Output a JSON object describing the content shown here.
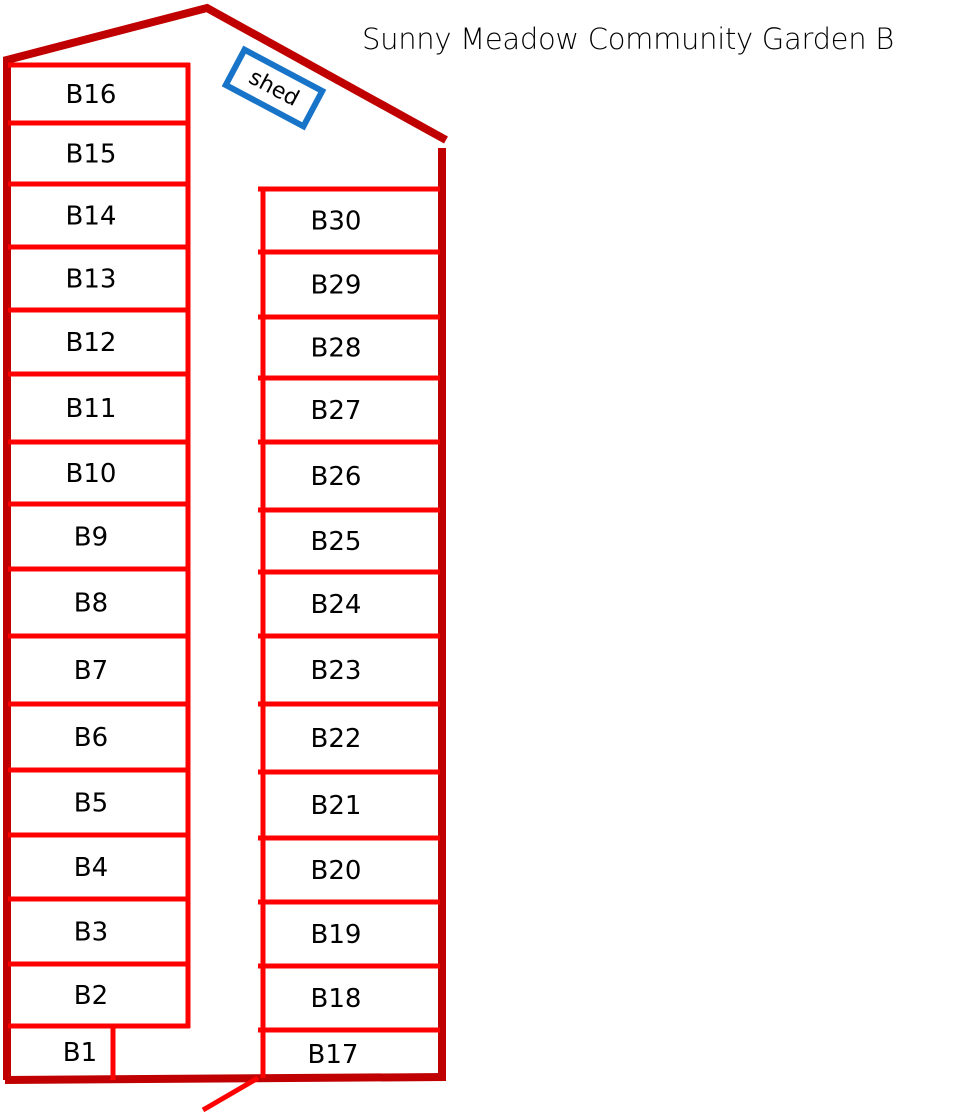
{
  "title": "Sunny Meadow Community Garden B",
  "shed_label": "shed",
  "colors": {
    "boundary": "#c00000",
    "plot_lines": "#ff0000",
    "shed": "#1874c8"
  },
  "left_column_plots": [
    "B16",
    "B15",
    "B14",
    "B13",
    "B12",
    "B11",
    "B10",
    "B9",
    "B8",
    "B7",
    "B6",
    "B5",
    "B4",
    "B3",
    "B2",
    "B1"
  ],
  "right_column_plots": [
    "B30",
    "B29",
    "B28",
    "B27",
    "B26",
    "B25",
    "B24",
    "B23",
    "B22",
    "B21",
    "B20",
    "B19",
    "B18",
    "B17"
  ]
}
